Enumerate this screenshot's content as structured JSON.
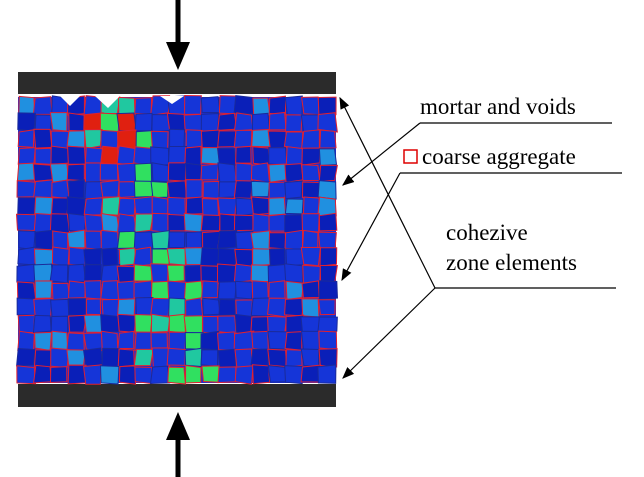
{
  "labels": {
    "mortar": "mortar and voids",
    "aggregate": "coarse aggregate",
    "cohesive_1": "cohezive",
    "cohesive_2": "zone elements"
  }
}
